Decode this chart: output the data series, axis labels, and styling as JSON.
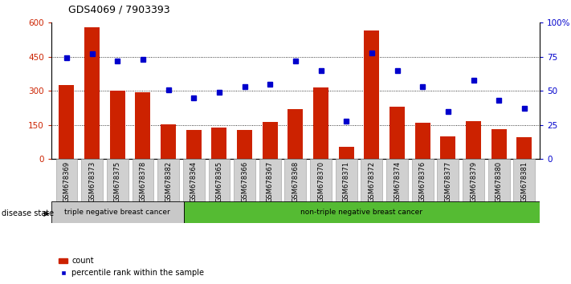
{
  "title": "GDS4069 / 7903393",
  "samples": [
    "GSM678369",
    "GSM678373",
    "GSM678375",
    "GSM678378",
    "GSM678382",
    "GSM678364",
    "GSM678365",
    "GSM678366",
    "GSM678367",
    "GSM678368",
    "GSM678370",
    "GSM678371",
    "GSM678372",
    "GSM678374",
    "GSM678376",
    "GSM678377",
    "GSM678379",
    "GSM678380",
    "GSM678381"
  ],
  "counts": [
    325,
    580,
    300,
    295,
    152,
    128,
    140,
    128,
    162,
    220,
    315,
    55,
    565,
    230,
    158,
    100,
    168,
    130,
    95
  ],
  "percentiles": [
    74,
    77,
    72,
    73,
    51,
    45,
    49,
    53,
    55,
    72,
    65,
    28,
    78,
    65,
    53,
    35,
    58,
    43,
    37
  ],
  "group1_count": 5,
  "group1_label": "triple negative breast cancer",
  "group2_label": "non-triple negative breast cancer",
  "bar_color": "#cc2200",
  "dot_color": "#0000cc",
  "yticks_left": [
    0,
    150,
    300,
    450,
    600
  ],
  "yticks_right": [
    0,
    25,
    50,
    75,
    100
  ],
  "ylim_left": [
    0,
    600
  ],
  "ylim_right": [
    0,
    100
  ],
  "group1_bg": "#c8c8c8",
  "group2_bg": "#55bb33",
  "legend_count_label": "count",
  "legend_pct_label": "percentile rank within the sample",
  "tick_bg": "#d0d0d0",
  "bg_white": "#ffffff"
}
